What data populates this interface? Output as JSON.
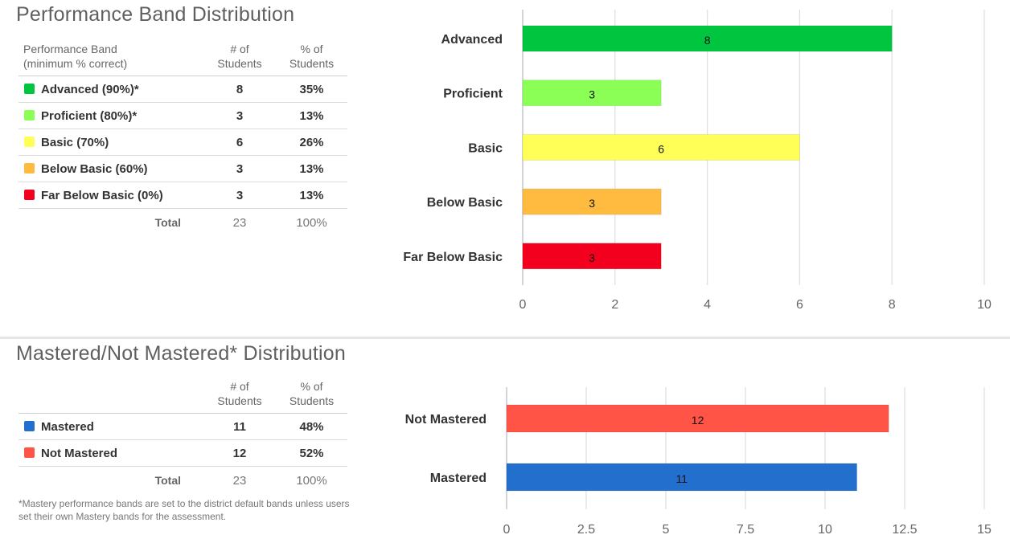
{
  "performance_band": {
    "title": "Performance Band Distribution",
    "headers": {
      "band_line1": "Performance Band",
      "band_line2": "(minimum % correct)",
      "count_line1": "# of",
      "count_line2": "Students",
      "pct_line1": "% of",
      "pct_line2": "Students"
    },
    "rows": [
      {
        "label": "Advanced (90%)*",
        "count": "8",
        "pct": "35%",
        "color": "#00c63f"
      },
      {
        "label": "Proficient (80%)*",
        "count": "3",
        "pct": "13%",
        "color": "#8cff57"
      },
      {
        "label": "Basic (70%)",
        "count": "6",
        "pct": "26%",
        "color": "#ffff57"
      },
      {
        "label": "Below Basic (60%)",
        "count": "3",
        "pct": "13%",
        "color": "#ffbb3f"
      },
      {
        "label": "Far Below Basic (0%)",
        "count": "3",
        "pct": "13%",
        "color": "#f2001e"
      }
    ],
    "total": {
      "label": "Total",
      "count": "23",
      "pct": "100%"
    }
  },
  "mastery": {
    "title": "Mastered/Not Mastered* Distribution",
    "headers": {
      "count_line1": "# of",
      "count_line2": "Students",
      "pct_line1": "% of",
      "pct_line2": "Students"
    },
    "rows": [
      {
        "label": "Mastered",
        "count": "11",
        "pct": "48%",
        "color": "#226fce"
      },
      {
        "label": "Not Mastered",
        "count": "12",
        "pct": "52%",
        "color": "#ff5446"
      }
    ],
    "total": {
      "label": "Total",
      "count": "23",
      "pct": "100%"
    },
    "footnote": "*Mastery performance bands are set to the district default bands unless users set their own Mastery bands for the assessment."
  },
  "chart_data": [
    {
      "type": "bar",
      "orientation": "horizontal",
      "categories": [
        "Advanced",
        "Proficient",
        "Basic",
        "Below Basic",
        "Far Below Basic"
      ],
      "values": [
        8,
        3,
        6,
        3,
        3
      ],
      "colors": [
        "#00c63f",
        "#8cff57",
        "#ffff57",
        "#ffbb3f",
        "#f2001e"
      ],
      "data_labels": [
        "8",
        "3",
        "6",
        "3",
        "3"
      ],
      "xlim": [
        0,
        10
      ],
      "xticks": [
        "0",
        "2",
        "4",
        "6",
        "8",
        "10"
      ],
      "grid": true,
      "legend": "none"
    },
    {
      "type": "bar",
      "orientation": "horizontal",
      "categories": [
        "Not Mastered",
        "Mastered"
      ],
      "values": [
        12,
        11
      ],
      "colors": [
        "#ff5446",
        "#226fce"
      ],
      "data_labels": [
        "12",
        "11"
      ],
      "xlim": [
        0,
        15
      ],
      "xticks": [
        "0",
        "2.5",
        "5",
        "7.5",
        "10",
        "12.5",
        "15"
      ],
      "grid": true,
      "legend": "none"
    }
  ]
}
